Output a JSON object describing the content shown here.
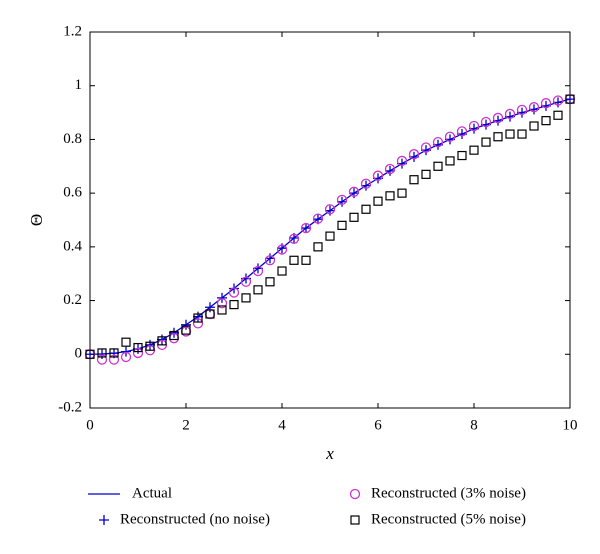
{
  "chart_data": {
    "type": "line",
    "xlabel": "x",
    "ylabel": "Θ",
    "xlim": [
      0,
      10
    ],
    "xticks": [
      0,
      2,
      4,
      6,
      8,
      10
    ],
    "ylim": [
      -0.2,
      1.2
    ],
    "yticks": [
      -0.2,
      0,
      0.2,
      0.4,
      0.6,
      0.8,
      1,
      1.2
    ],
    "x": [
      0,
      0.25,
      0.5,
      0.75,
      1,
      1.25,
      1.5,
      1.75,
      2,
      2.25,
      2.5,
      2.75,
      3,
      3.25,
      3.5,
      3.75,
      4,
      4.25,
      4.5,
      4.75,
      5,
      5.25,
      5.5,
      5.75,
      6,
      6.25,
      6.5,
      6.75,
      7,
      7.25,
      7.5,
      7.75,
      8,
      8.25,
      8.5,
      8.75,
      9,
      9.25,
      9.5,
      9.75,
      10
    ],
    "series": [
      {
        "name": "Actual",
        "color": "#0000cc",
        "marker": "line",
        "values": [
          0,
          0.001,
          0.004,
          0.01,
          0.02,
          0.035,
          0.055,
          0.08,
          0.11,
          0.14,
          0.175,
          0.21,
          0.245,
          0.282,
          0.32,
          0.357,
          0.395,
          0.433,
          0.47,
          0.503,
          0.535,
          0.568,
          0.6,
          0.628,
          0.655,
          0.683,
          0.71,
          0.735,
          0.76,
          0.78,
          0.8,
          0.82,
          0.84,
          0.855,
          0.87,
          0.885,
          0.9,
          0.912,
          0.925,
          0.938,
          0.95
        ]
      },
      {
        "name": "Reconstructed (no noise)",
        "color": "#0000cc",
        "marker": "plus",
        "values": [
          0,
          0.001,
          0.004,
          0.01,
          0.02,
          0.035,
          0.055,
          0.08,
          0.11,
          0.14,
          0.175,
          0.21,
          0.245,
          0.282,
          0.32,
          0.357,
          0.395,
          0.433,
          0.47,
          0.503,
          0.535,
          0.568,
          0.6,
          0.628,
          0.655,
          0.683,
          0.71,
          0.735,
          0.76,
          0.78,
          0.8,
          0.82,
          0.84,
          0.855,
          0.87,
          0.885,
          0.9,
          0.912,
          0.925,
          0.938,
          0.95
        ]
      },
      {
        "name": "Reconstructed (3% noise)",
        "color": "#cc33cc",
        "marker": "circle",
        "values": [
          0,
          -0.02,
          -0.02,
          -0.01,
          0.005,
          0.015,
          0.035,
          0.06,
          0.085,
          0.115,
          0.15,
          0.19,
          0.23,
          0.27,
          0.31,
          0.35,
          0.39,
          0.43,
          0.47,
          0.505,
          0.54,
          0.575,
          0.605,
          0.635,
          0.665,
          0.69,
          0.72,
          0.745,
          0.77,
          0.79,
          0.81,
          0.83,
          0.85,
          0.865,
          0.88,
          0.895,
          0.91,
          0.92,
          0.935,
          0.945,
          0.95
        ]
      },
      {
        "name": "Reconstructed (5% noise)",
        "color": "#000000",
        "marker": "square",
        "values": [
          0,
          0.005,
          0.005,
          0.045,
          0.025,
          0.03,
          0.05,
          0.07,
          0.09,
          0.135,
          0.15,
          0.165,
          0.185,
          0.21,
          0.24,
          0.27,
          0.31,
          0.35,
          0.35,
          0.4,
          0.44,
          0.48,
          0.51,
          0.54,
          0.57,
          0.59,
          0.6,
          0.65,
          0.67,
          0.7,
          0.72,
          0.74,
          0.76,
          0.79,
          0.81,
          0.82,
          0.82,
          0.85,
          0.87,
          0.89,
          0.95
        ]
      }
    ]
  }
}
